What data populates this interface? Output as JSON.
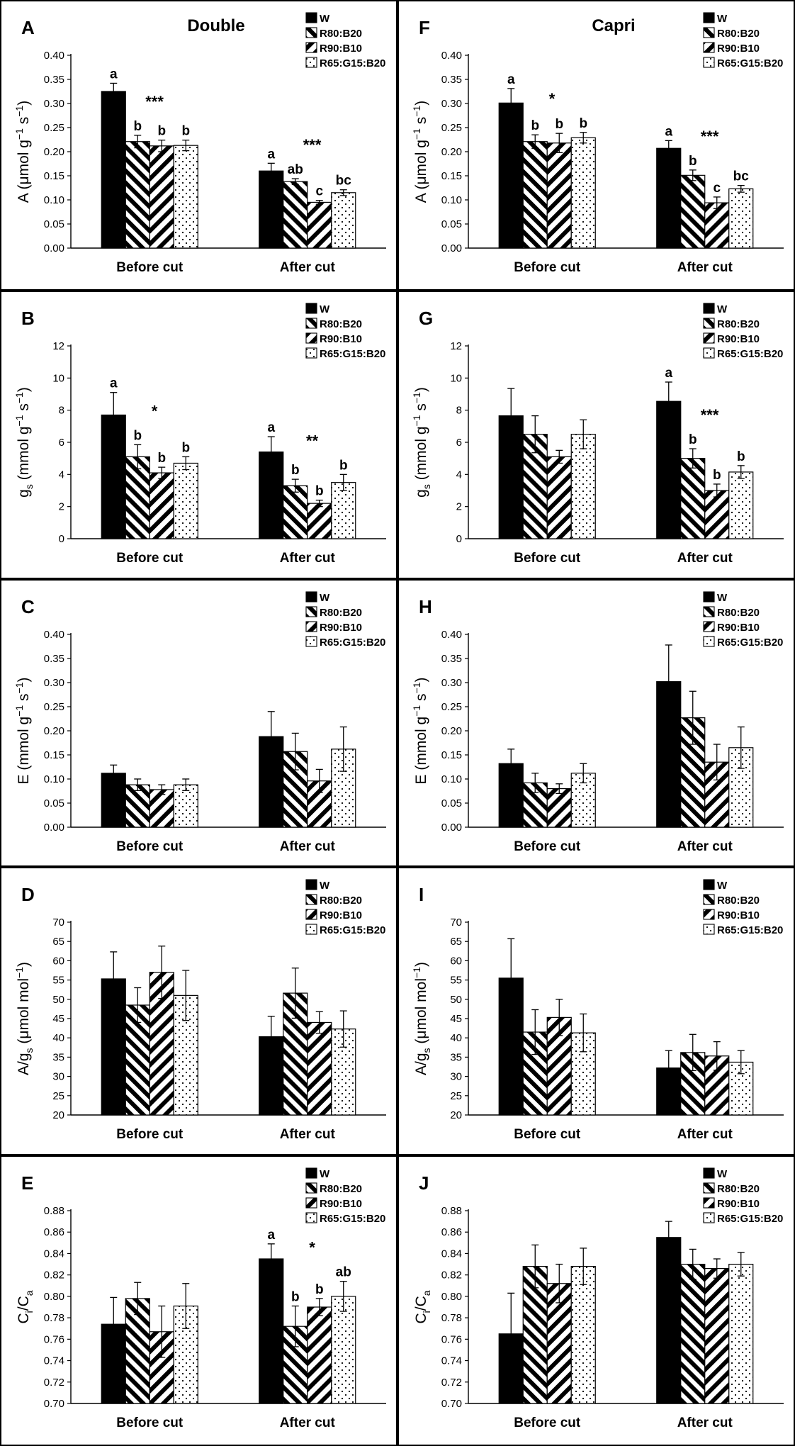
{
  "figure": {
    "columns": [
      {
        "title": "Double"
      },
      {
        "title": "Capri"
      }
    ]
  },
  "colors": {
    "frame": "#000000",
    "bar_W": "#000000",
    "background": "#ffffff"
  },
  "series": [
    {
      "name": "W",
      "pattern": "solid"
    },
    {
      "name": "R80:B20",
      "pattern": "diag-back"
    },
    {
      "name": "R90:B10",
      "pattern": "diag-fwd"
    },
    {
      "name": "R65:G15:B20",
      "pattern": "dots"
    }
  ],
  "chart_data": [
    {
      "panel": "A",
      "cultivar": "Double",
      "type": "bar",
      "categories": [
        "Before cut",
        "After cut"
      ],
      "ylabel_main": "A (μmol g",
      "ylabel_sup1": "−1",
      "ylabel_mid": " s",
      "ylabel_sup2": "−1",
      "ylabel_end": ")",
      "ylim": [
        0,
        0.4
      ],
      "ytick_step": 0.05,
      "ytick_decimals": 2,
      "series": [
        {
          "name": "W",
          "values": [
            0.325,
            0.16
          ],
          "errors": [
            0.017,
            0.016
          ]
        },
        {
          "name": "R80:B20",
          "values": [
            0.221,
            0.138
          ],
          "errors": [
            0.013,
            0.006
          ]
        },
        {
          "name": "R90:B10",
          "values": [
            0.212,
            0.095
          ],
          "errors": [
            0.012,
            0.004
          ]
        },
        {
          "name": "R65:G15:B20",
          "values": [
            0.213,
            0.115
          ],
          "errors": [
            0.011,
            0.006
          ]
        }
      ],
      "letters": [
        [
          "a",
          "a"
        ],
        [
          "b",
          "ab"
        ],
        [
          "b",
          "c"
        ],
        [
          "b",
          "bc"
        ]
      ],
      "significance": [
        "***",
        "***"
      ]
    },
    {
      "panel": "B",
      "cultivar": "Double",
      "type": "bar",
      "categories": [
        "Before cut",
        "After cut"
      ],
      "ylabel_main": "g",
      "ylabel_sub": "s",
      "ylabel_rest": " (mmol g",
      "ylabel_sup1": "−1",
      "ylabel_mid": " s",
      "ylabel_sup2": "−1",
      "ylabel_end": ")",
      "ylim": [
        0,
        12
      ],
      "ytick_step": 2,
      "ytick_decimals": 0,
      "series": [
        {
          "name": "W",
          "values": [
            7.7,
            5.4
          ],
          "errors": [
            1.4,
            0.95
          ]
        },
        {
          "name": "R80:B20",
          "values": [
            5.1,
            3.3
          ],
          "errors": [
            0.75,
            0.4
          ]
        },
        {
          "name": "R90:B10",
          "values": [
            4.1,
            2.2
          ],
          "errors": [
            0.35,
            0.2
          ]
        },
        {
          "name": "R65:G15:B20",
          "values": [
            4.7,
            3.5
          ],
          "errors": [
            0.4,
            0.5
          ]
        }
      ],
      "letters": [
        [
          "a",
          "a"
        ],
        [
          "b",
          "b"
        ],
        [
          "b",
          "b"
        ],
        [
          "b",
          "b"
        ]
      ],
      "significance": [
        "*",
        "**"
      ]
    },
    {
      "panel": "C",
      "cultivar": "Double",
      "type": "bar",
      "categories": [
        "Before cut",
        "After cut"
      ],
      "ylabel_main": "E (mmol g",
      "ylabel_sup1": "−1",
      "ylabel_mid": " s",
      "ylabel_sup2": "−1",
      "ylabel_end": ")",
      "ylim": [
        0,
        0.4
      ],
      "ytick_step": 0.05,
      "ytick_decimals": 2,
      "series": [
        {
          "name": "W",
          "values": [
            0.112,
            0.188
          ],
          "errors": [
            0.017,
            0.052
          ]
        },
        {
          "name": "R80:B20",
          "values": [
            0.088,
            0.157
          ],
          "errors": [
            0.012,
            0.038
          ]
        },
        {
          "name": "R90:B10",
          "values": [
            0.078,
            0.096
          ],
          "errors": [
            0.01,
            0.024
          ]
        },
        {
          "name": "R65:G15:B20",
          "values": [
            0.088,
            0.162
          ],
          "errors": [
            0.012,
            0.046
          ]
        }
      ],
      "letters": [
        [
          "",
          ""
        ],
        [
          "",
          ""
        ],
        [
          "",
          ""
        ],
        [
          "",
          ""
        ]
      ],
      "significance": [
        "",
        ""
      ]
    },
    {
      "panel": "D",
      "cultivar": "Double",
      "type": "bar",
      "categories": [
        "Before cut",
        "After cut"
      ],
      "ylabel_main": "A/g",
      "ylabel_sub": "s",
      "ylabel_rest": " (μmol mol",
      "ylabel_sup1": "−1",
      "ylabel_end": ")",
      "ylim": [
        20,
        70
      ],
      "ytick_step": 5,
      "ytick_decimals": 0,
      "series": [
        {
          "name": "W",
          "values": [
            55.3,
            40.3
          ],
          "errors": [
            7,
            5.3
          ]
        },
        {
          "name": "R80:B20",
          "values": [
            48.5,
            51.6
          ],
          "errors": [
            4.5,
            6.5
          ]
        },
        {
          "name": "R90:B10",
          "values": [
            57,
            44
          ],
          "errors": [
            6.8,
            2.8
          ]
        },
        {
          "name": "R65:G15:B20",
          "values": [
            51,
            42.3
          ],
          "errors": [
            6.5,
            4.7
          ]
        }
      ],
      "letters": [
        [
          "",
          ""
        ],
        [
          "",
          ""
        ],
        [
          "",
          ""
        ],
        [
          "",
          ""
        ]
      ],
      "significance": [
        "",
        ""
      ]
    },
    {
      "panel": "E",
      "cultivar": "Double",
      "type": "bar",
      "categories": [
        "Before cut",
        "After cut"
      ],
      "ylabel_c1": "C",
      "ylabel_s1": "i",
      "ylabel_slash": "/C",
      "ylabel_s2": "a",
      "ylim": [
        0.7,
        0.88
      ],
      "ytick_step": 0.02,
      "ytick_decimals": 2,
      "series": [
        {
          "name": "W",
          "values": [
            0.774,
            0.835
          ],
          "errors": [
            0.025,
            0.014
          ]
        },
        {
          "name": "R80:B20",
          "values": [
            0.798,
            0.772
          ],
          "errors": [
            0.015,
            0.019
          ]
        },
        {
          "name": "R90:B10",
          "values": [
            0.767,
            0.79
          ],
          "errors": [
            0.024,
            0.008
          ]
        },
        {
          "name": "R65:G15:B20",
          "values": [
            0.791,
            0.8
          ],
          "errors": [
            0.021,
            0.014
          ]
        }
      ],
      "letters": [
        [
          "",
          "a"
        ],
        [
          "",
          "b"
        ],
        [
          "",
          "b"
        ],
        [
          "",
          "ab"
        ]
      ],
      "significance": [
        "",
        "*"
      ]
    },
    {
      "panel": "F",
      "cultivar": "Capri",
      "type": "bar",
      "categories": [
        "Before cut",
        "After cut"
      ],
      "ylabel_main": "A (μmol g",
      "ylabel_sup1": "−1",
      "ylabel_mid": " s",
      "ylabel_sup2": "−1",
      "ylabel_end": ")",
      "ylim": [
        0,
        0.4
      ],
      "ytick_step": 0.05,
      "ytick_decimals": 2,
      "series": [
        {
          "name": "W",
          "values": [
            0.301,
            0.207
          ],
          "errors": [
            0.03,
            0.016
          ]
        },
        {
          "name": "R80:B20",
          "values": [
            0.221,
            0.151
          ],
          "errors": [
            0.014,
            0.011
          ]
        },
        {
          "name": "R90:B10",
          "values": [
            0.218,
            0.094
          ],
          "errors": [
            0.02,
            0.012
          ]
        },
        {
          "name": "R65:G15:B20",
          "values": [
            0.229,
            0.123
          ],
          "errors": [
            0.011,
            0.007
          ]
        }
      ],
      "letters": [
        [
          "a",
          "a"
        ],
        [
          "b",
          "b"
        ],
        [
          "b",
          "c"
        ],
        [
          "b",
          "bc"
        ]
      ],
      "significance": [
        "*",
        "***"
      ]
    },
    {
      "panel": "G",
      "cultivar": "Capri",
      "type": "bar",
      "categories": [
        "Before cut",
        "After cut"
      ],
      "ylabel_main": "g",
      "ylabel_sub": "s",
      "ylabel_rest": " (mmol g",
      "ylabel_sup1": "−1",
      "ylabel_mid": " s",
      "ylabel_sup2": "−1",
      "ylabel_end": ")",
      "ylim": [
        0,
        12
      ],
      "ytick_step": 2,
      "ytick_decimals": 0,
      "series": [
        {
          "name": "W",
          "values": [
            7.65,
            8.55
          ],
          "errors": [
            1.7,
            1.2
          ]
        },
        {
          "name": "R80:B20",
          "values": [
            6.5,
            5
          ],
          "errors": [
            1.15,
            0.6
          ]
        },
        {
          "name": "R90:B10",
          "values": [
            5.1,
            3
          ],
          "errors": [
            0.4,
            0.4
          ]
        },
        {
          "name": "R65:G15:B20",
          "values": [
            6.5,
            4.15
          ],
          "errors": [
            0.9,
            0.4
          ]
        }
      ],
      "letters": [
        [
          "",
          "a"
        ],
        [
          "",
          "b"
        ],
        [
          "",
          "b"
        ],
        [
          "",
          "b"
        ]
      ],
      "significance": [
        "",
        "***"
      ]
    },
    {
      "panel": "H",
      "cultivar": "Capri",
      "type": "bar",
      "categories": [
        "Before cut",
        "After cut"
      ],
      "ylabel_main": "E (mmol g",
      "ylabel_sup1": "−1",
      "ylabel_mid": " s",
      "ylabel_sup2": "−1",
      "ylabel_end": ")",
      "ylim": [
        0,
        0.4
      ],
      "ytick_step": 0.05,
      "ytick_decimals": 2,
      "series": [
        {
          "name": "W",
          "values": [
            0.132,
            0.302
          ],
          "errors": [
            0.03,
            0.076
          ]
        },
        {
          "name": "R80:B20",
          "values": [
            0.092,
            0.227
          ],
          "errors": [
            0.02,
            0.055
          ]
        },
        {
          "name": "R90:B10",
          "values": [
            0.08,
            0.135
          ],
          "errors": [
            0.01,
            0.037
          ]
        },
        {
          "name": "R65:G15:B20",
          "values": [
            0.112,
            0.165
          ],
          "errors": [
            0.02,
            0.043
          ]
        }
      ],
      "letters": [
        [
          "",
          ""
        ],
        [
          "",
          ""
        ],
        [
          "",
          ""
        ],
        [
          "",
          ""
        ]
      ],
      "significance": [
        "",
        ""
      ]
    },
    {
      "panel": "I",
      "cultivar": "Capri",
      "type": "bar",
      "categories": [
        "Before cut",
        "After cut"
      ],
      "ylabel_main": "A/g",
      "ylabel_sub": "s",
      "ylabel_rest": " (μmol mol",
      "ylabel_sup1": "−1",
      "ylabel_end": ")",
      "ylim": [
        20,
        70
      ],
      "ytick_step": 5,
      "ytick_decimals": 0,
      "series": [
        {
          "name": "W",
          "values": [
            55.5,
            32.2
          ],
          "errors": [
            10.2,
            4.5
          ]
        },
        {
          "name": "R80:B20",
          "values": [
            41.5,
            36.2
          ],
          "errors": [
            5.8,
            4.7
          ]
        },
        {
          "name": "R90:B10",
          "values": [
            45.3,
            35.3
          ],
          "errors": [
            4.7,
            3.7
          ]
        },
        {
          "name": "R65:G15:B20",
          "values": [
            41.3,
            33.7
          ],
          "errors": [
            4.9,
            3
          ]
        }
      ],
      "letters": [
        [
          "",
          ""
        ],
        [
          "",
          ""
        ],
        [
          "",
          ""
        ],
        [
          "",
          ""
        ]
      ],
      "significance": [
        "",
        ""
      ]
    },
    {
      "panel": "J",
      "cultivar": "Capri",
      "type": "bar",
      "categories": [
        "Before cut",
        "After cut"
      ],
      "ylabel_c1": "C",
      "ylabel_s1": "i",
      "ylabel_slash": "/C",
      "ylabel_s2": "a",
      "ylim": [
        0.7,
        0.88
      ],
      "ytick_step": 0.02,
      "ytick_decimals": 2,
      "series": [
        {
          "name": "W",
          "values": [
            0.765,
            0.855
          ],
          "errors": [
            0.038,
            0.015
          ]
        },
        {
          "name": "R80:B20",
          "values": [
            0.828,
            0.83
          ],
          "errors": [
            0.02,
            0.014
          ]
        },
        {
          "name": "R90:B10",
          "values": [
            0.812,
            0.826
          ],
          "errors": [
            0.018,
            0.009
          ]
        },
        {
          "name": "R65:G15:B20",
          "values": [
            0.828,
            0.83
          ],
          "errors": [
            0.017,
            0.011
          ]
        }
      ],
      "letters": [
        [
          "",
          ""
        ],
        [
          "",
          ""
        ],
        [
          "",
          ""
        ],
        [
          "",
          ""
        ]
      ],
      "significance": [
        "",
        ""
      ]
    }
  ]
}
